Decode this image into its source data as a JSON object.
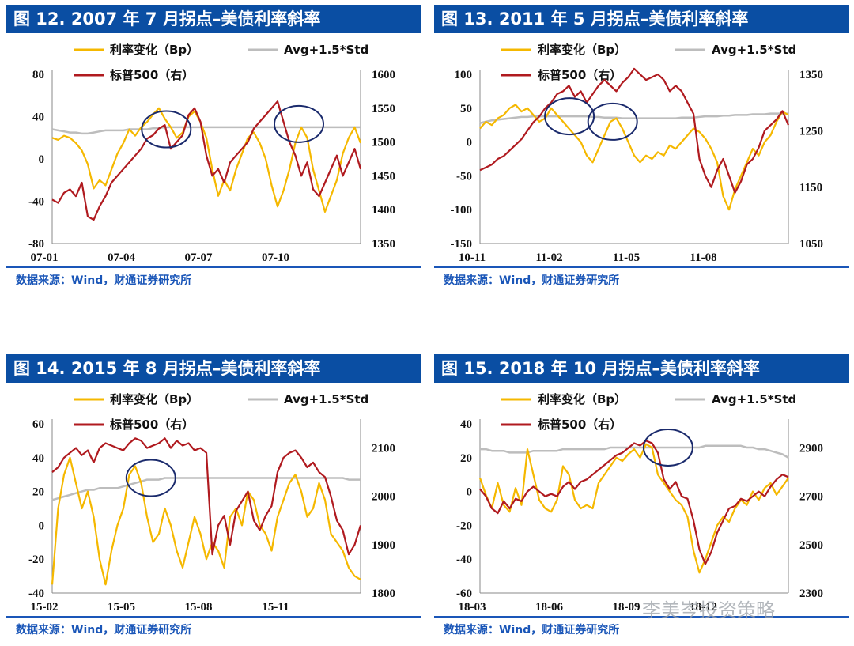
{
  "colors": {
    "rate": "#f5b800",
    "avg": "#bdbdbd",
    "spx": "#b01a1f",
    "title_bg": "#0a4ea3",
    "source": "#1a56b8"
  },
  "legend": {
    "rate": "利率变化（Bp）",
    "avg": "Avg+1.5*Std",
    "spx": "标普500（右）"
  },
  "source_text": "数据来源：Wind，财通证券研究所",
  "watermark": "李美岑投资策略",
  "chart_data": [
    {
      "type": "line",
      "title": "图 12. 2007 年 7 月拐点–美债利率斜率",
      "x_ticks": [
        "07-01",
        "07-04",
        "07-07",
        "07-10"
      ],
      "ylim_left": [
        -80,
        80
      ],
      "ylim_right": [
        1350,
        1600
      ],
      "yticks_left": [
        80,
        40,
        0,
        -40,
        -80
      ],
      "yticks_right": [
        1600,
        1550,
        1500,
        1450,
        1400,
        1350
      ],
      "rate_values": [
        20,
        18,
        22,
        20,
        15,
        8,
        -5,
        -28,
        -20,
        -25,
        -10,
        5,
        15,
        28,
        22,
        30,
        35,
        42,
        48,
        38,
        30,
        20,
        25,
        40,
        45,
        35,
        20,
        -10,
        -35,
        -20,
        -30,
        -10,
        5,
        20,
        25,
        15,
        0,
        -25,
        -45,
        -30,
        -10,
        15,
        30,
        20,
        -10,
        -30,
        -50,
        -35,
        -20,
        5,
        20,
        30,
        15
      ],
      "avg_values": [
        28,
        27,
        26,
        25,
        25,
        24,
        24,
        25,
        26,
        27,
        27,
        27,
        27,
        28,
        28,
        28,
        28,
        29,
        29,
        30,
        30,
        30,
        30,
        30,
        30,
        30,
        30,
        30,
        30,
        30,
        30,
        30,
        30,
        30,
        30,
        30,
        30,
        30,
        30,
        30,
        30,
        30,
        30,
        30,
        30,
        30,
        30,
        30,
        30,
        30,
        30,
        30,
        30
      ],
      "spx_values": [
        1415,
        1410,
        1425,
        1430,
        1420,
        1440,
        1390,
        1385,
        1405,
        1420,
        1440,
        1450,
        1460,
        1470,
        1480,
        1490,
        1505,
        1510,
        1520,
        1525,
        1490,
        1500,
        1510,
        1540,
        1550,
        1530,
        1480,
        1450,
        1460,
        1440,
        1470,
        1480,
        1490,
        1500,
        1520,
        1530,
        1540,
        1550,
        1560,
        1530,
        1500,
        1480,
        1450,
        1470,
        1430,
        1420,
        1440,
        1460,
        1480,
        1450,
        1470,
        1490,
        1460
      ],
      "highlights": [
        {
          "x_frac": 0.37,
          "y_val": 28
        },
        {
          "x_frac": 0.8,
          "y_val": 33
        }
      ]
    },
    {
      "type": "line",
      "title": "图 13. 2011 年 5 月拐点–美债利率斜率",
      "x_ticks": [
        "10-11",
        "11-02",
        "11-05",
        "11-08"
      ],
      "ylim_left": [
        -150,
        100
      ],
      "ylim_right": [
        1050,
        1350
      ],
      "yticks_left": [
        100,
        50,
        0,
        -50,
        -100,
        -150
      ],
      "yticks_right": [
        1350,
        1250,
        1150,
        1050
      ],
      "rate_values": [
        20,
        30,
        25,
        35,
        40,
        50,
        55,
        45,
        50,
        40,
        30,
        35,
        50,
        40,
        30,
        20,
        10,
        0,
        -20,
        -30,
        -10,
        10,
        30,
        35,
        20,
        0,
        -20,
        -30,
        -20,
        -25,
        -15,
        -20,
        -5,
        -10,
        0,
        10,
        20,
        15,
        5,
        -10,
        -30,
        -80,
        -100,
        -70,
        -50,
        -30,
        -10,
        -20,
        0,
        10,
        30,
        45,
        40
      ],
      "avg_values": [
        28,
        30,
        32,
        33,
        34,
        35,
        36,
        37,
        37,
        38,
        38,
        38,
        38,
        38,
        38,
        38,
        38,
        38,
        38,
        37,
        37,
        36,
        36,
        36,
        35,
        35,
        35,
        35,
        35,
        35,
        35,
        35,
        35,
        35,
        36,
        36,
        36,
        37,
        38,
        38,
        38,
        39,
        39,
        40,
        40,
        40,
        41,
        41,
        41,
        42,
        42,
        42,
        42
      ],
      "spx_values": [
        1180,
        1185,
        1190,
        1200,
        1205,
        1215,
        1225,
        1235,
        1250,
        1265,
        1275,
        1290,
        1300,
        1315,
        1320,
        1330,
        1310,
        1320,
        1300,
        1315,
        1330,
        1340,
        1330,
        1320,
        1335,
        1345,
        1360,
        1350,
        1340,
        1345,
        1350,
        1340,
        1320,
        1330,
        1320,
        1300,
        1280,
        1200,
        1170,
        1150,
        1180,
        1200,
        1170,
        1140,
        1160,
        1190,
        1200,
        1220,
        1250,
        1260,
        1270,
        1285,
        1260
      ],
      "highlights": [
        {
          "x_frac": 0.29,
          "y_val": 38
        },
        {
          "x_frac": 0.43,
          "y_val": 30
        }
      ]
    },
    {
      "type": "line",
      "title": "图 14. 2015 年 8 月拐点–美债利率斜率",
      "x_ticks": [
        "15-02",
        "15-05",
        "15-08",
        "15-11"
      ],
      "ylim_left": [
        -40,
        60
      ],
      "ylim_right": [
        1800,
        2150
      ],
      "yticks_left": [
        60,
        40,
        20,
        0,
        -20,
        -40
      ],
      "yticks_right": [
        2100,
        2000,
        1900,
        1800
      ],
      "rate_values": [
        -35,
        10,
        30,
        40,
        25,
        10,
        20,
        5,
        -20,
        -35,
        -15,
        0,
        10,
        30,
        35,
        25,
        5,
        -10,
        -5,
        10,
        0,
        -15,
        -25,
        -10,
        5,
        -5,
        -20,
        -10,
        -15,
        -25,
        5,
        10,
        0,
        20,
        15,
        0,
        -5,
        -15,
        5,
        15,
        25,
        30,
        20,
        5,
        10,
        25,
        15,
        -5,
        -10,
        -15,
        -25,
        -30,
        -32
      ],
      "avg_values": [
        15,
        16,
        17,
        18,
        19,
        20,
        21,
        21,
        22,
        22,
        22,
        22,
        23,
        24,
        25,
        26,
        27,
        27,
        27,
        28,
        28,
        28,
        28,
        28,
        28,
        28,
        28,
        28,
        28,
        28,
        28,
        28,
        28,
        28,
        28,
        28,
        28,
        28,
        28,
        28,
        28,
        28,
        28,
        28,
        28,
        28,
        28,
        28,
        28,
        28,
        27,
        27,
        27
      ],
      "spx_values": [
        2050,
        2060,
        2080,
        2090,
        2100,
        2085,
        2095,
        2070,
        2100,
        2110,
        2105,
        2100,
        2095,
        2110,
        2120,
        2115,
        2100,
        2105,
        2110,
        2120,
        2100,
        2115,
        2105,
        2110,
        2095,
        2100,
        2090,
        1880,
        1940,
        1960,
        1900,
        1970,
        1990,
        2010,
        1950,
        1930,
        1960,
        1980,
        2050,
        2080,
        2090,
        2095,
        2080,
        2060,
        2070,
        2050,
        2040,
        2000,
        1950,
        1930,
        1880,
        1900,
        1940
      ],
      "highlights": [
        {
          "x_frac": 0.32,
          "y_val": 28
        }
      ]
    },
    {
      "type": "line",
      "title": "图 15. 2018 年 10 月拐点–美债利率斜率",
      "x_ticks": [
        "18-03",
        "18-06",
        "18-09",
        "18-12"
      ],
      "ylim_left": [
        -60,
        40
      ],
      "ylim_right": [
        2300,
        3000
      ],
      "yticks_left": [
        40,
        20,
        0,
        -20,
        -40,
        -60
      ],
      "yticks_right": [
        2900,
        2700,
        2500,
        2300
      ],
      "rate_values": [
        8,
        -2,
        -10,
        5,
        -8,
        -12,
        2,
        -8,
        25,
        10,
        -5,
        -10,
        -12,
        -5,
        15,
        10,
        -5,
        -10,
        -8,
        -10,
        5,
        10,
        15,
        20,
        18,
        22,
        25,
        20,
        28,
        26,
        10,
        5,
        0,
        -5,
        -8,
        -15,
        -35,
        -48,
        -40,
        -30,
        -20,
        -15,
        -18,
        -10,
        -5,
        -8,
        0,
        -5,
        2,
        5,
        -2,
        3,
        8
      ],
      "avg_values": [
        25,
        25,
        24,
        24,
        24,
        23,
        23,
        23,
        23,
        24,
        24,
        24,
        24,
        24,
        25,
        25,
        25,
        25,
        25,
        25,
        25,
        25,
        26,
        26,
        26,
        26,
        26,
        26,
        26,
        26,
        26,
        26,
        26,
        26,
        26,
        26,
        26,
        26,
        27,
        27,
        27,
        27,
        27,
        27,
        27,
        26,
        26,
        25,
        25,
        24,
        23,
        22,
        20
      ],
      "spx_values": [
        2730,
        2700,
        2650,
        2630,
        2680,
        2650,
        2690,
        2680,
        2720,
        2740,
        2720,
        2700,
        2710,
        2700,
        2740,
        2760,
        2730,
        2760,
        2770,
        2790,
        2810,
        2830,
        2850,
        2870,
        2880,
        2900,
        2920,
        2910,
        2930,
        2920,
        2880,
        2770,
        2730,
        2760,
        2700,
        2690,
        2600,
        2480,
        2420,
        2470,
        2550,
        2600,
        2650,
        2660,
        2690,
        2680,
        2700,
        2720,
        2700,
        2740,
        2770,
        2790,
        2780
      ],
      "highlights": [
        {
          "x_frac": 0.61,
          "y_val": 26
        }
      ]
    }
  ]
}
